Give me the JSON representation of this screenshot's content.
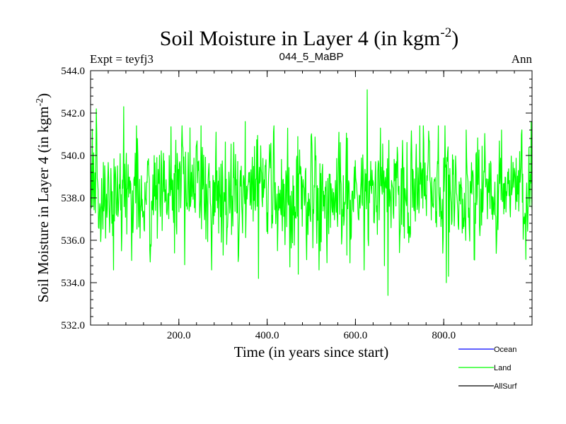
{
  "chart_data": {
    "type": "line",
    "title": "Soil Moisture in Layer 4 (in kgm",
    "title_superscript": "-2",
    "title_suffix": ")",
    "subtitle_left": "Expt = teyfj3",
    "subtitle_center": "044_5_MaBP",
    "subtitle_right": "Ann",
    "xlabel": "Time (in years since start)",
    "ylabel": "Soil Moisture in Layer 4 (in kgm",
    "ylabel_superscript": "-2",
    "ylabel_suffix": ")",
    "xlim": [
      0,
      1000
    ],
    "ylim": [
      532,
      544
    ],
    "xticks": [
      {
        "value": 200,
        "label": "200.0"
      },
      {
        "value": 400,
        "label": "400.0"
      },
      {
        "value": 600,
        "label": "600.0"
      },
      {
        "value": 800,
        "label": "800.0"
      }
    ],
    "yticks": [
      {
        "value": 532,
        "label": "532.0"
      },
      {
        "value": 534,
        "label": "534.0"
      },
      {
        "value": 536,
        "label": "536.0"
      },
      {
        "value": 538,
        "label": "538.0"
      },
      {
        "value": 540,
        "label": "540.0"
      },
      {
        "value": 542,
        "label": "542.0"
      },
      {
        "value": 544,
        "label": "544.0"
      }
    ],
    "x_minor_step": 40,
    "y_minor_step": 0.4,
    "noise": {
      "n_points": 1000,
      "mean": 538.3,
      "std": 1.25,
      "seed": 7
    },
    "anchors": [
      {
        "x": 5,
        "y": 537.6
      },
      {
        "x": 13,
        "y": 542.2
      },
      {
        "x": 34,
        "y": 536.1
      },
      {
        "x": 48,
        "y": 536.8
      },
      {
        "x": 70,
        "y": 535.5
      },
      {
        "x": 75,
        "y": 542.3
      },
      {
        "x": 112,
        "y": 536.1
      },
      {
        "x": 150,
        "y": 539.9
      },
      {
        "x": 190,
        "y": 535.4
      },
      {
        "x": 225,
        "y": 541.3
      },
      {
        "x": 284,
        "y": 541.1
      },
      {
        "x": 300,
        "y": 535.3
      },
      {
        "x": 350,
        "y": 541.6
      },
      {
        "x": 368,
        "y": 536.9
      },
      {
        "x": 380,
        "y": 534.2
      },
      {
        "x": 470,
        "y": 534.4
      },
      {
        "x": 520,
        "y": 535.5
      },
      {
        "x": 580,
        "y": 535.3
      },
      {
        "x": 626,
        "y": 543.1
      },
      {
        "x": 665,
        "y": 534.8
      },
      {
        "x": 673,
        "y": 533.4
      },
      {
        "x": 710,
        "y": 536.1
      },
      {
        "x": 745,
        "y": 541.4
      },
      {
        "x": 805,
        "y": 534.0
      },
      {
        "x": 810,
        "y": 534.3
      },
      {
        "x": 850,
        "y": 541.2
      },
      {
        "x": 930,
        "y": 541.2
      },
      {
        "x": 985,
        "y": 535.1
      },
      {
        "x": 997,
        "y": 541.6
      }
    ],
    "series": [
      {
        "name": "Ocean",
        "color": "#0000ff",
        "visible": false
      },
      {
        "name": "Land",
        "color": "#00ff00",
        "visible": true
      },
      {
        "name": "AllSurf",
        "color": "#000000",
        "visible": false
      }
    ],
    "legend": {
      "position": "bottom-right"
    }
  }
}
